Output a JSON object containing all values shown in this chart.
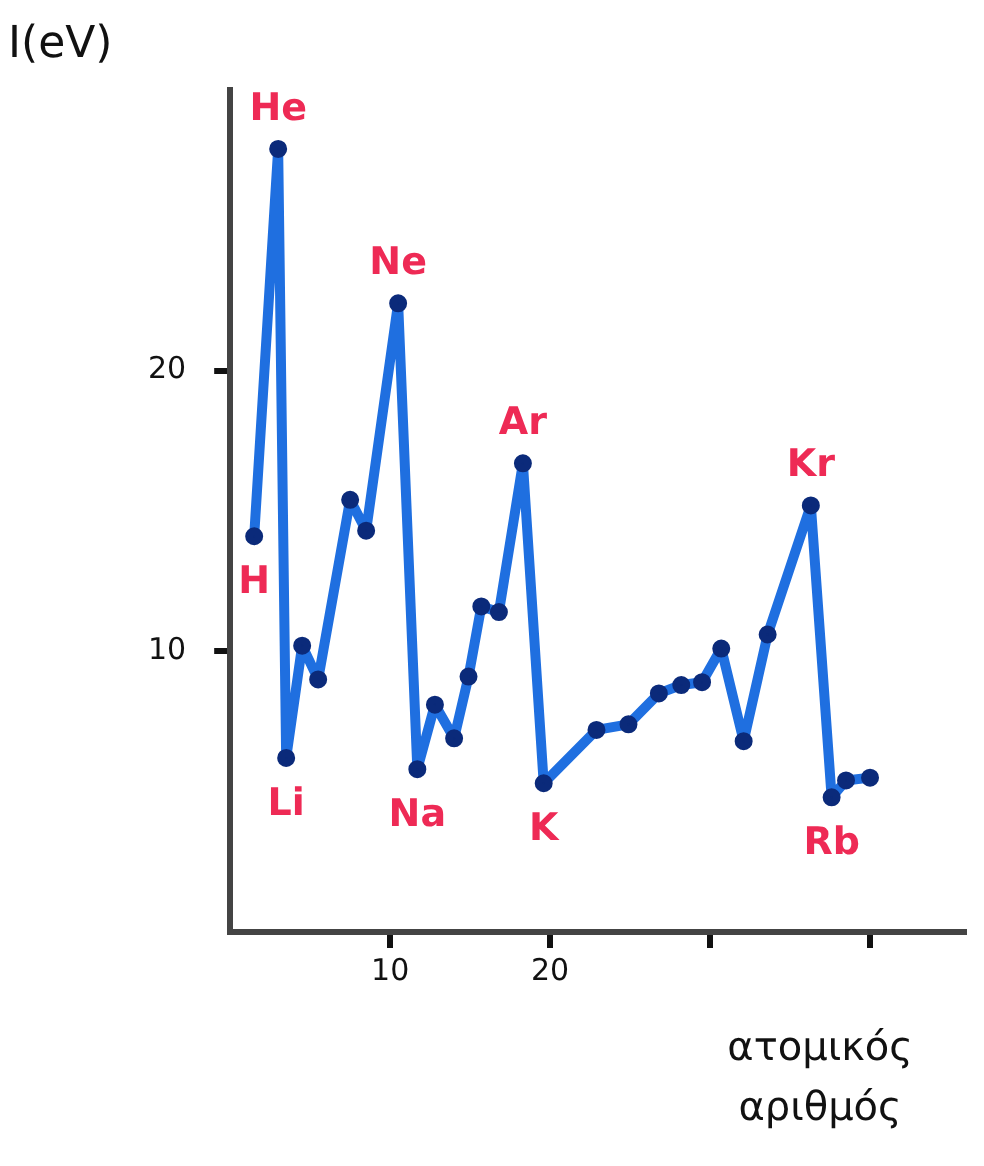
{
  "chart_data": {
    "type": "line",
    "xlabel": "ατομικός αριθμός",
    "ylabel": "I(eV)",
    "x": [
      1.5,
      3,
      3.5,
      4.5,
      5.5,
      7.5,
      8.5,
      10.5,
      11.7,
      12.8,
      14,
      14.9,
      15.7,
      16.8,
      18.3,
      19.6,
      22.9,
      24.9,
      26.8,
      28.2,
      29.5,
      30.7,
      32.1,
      33.6,
      36.3,
      37.6,
      38.5,
      40
    ],
    "series": [
      {
        "color": "#1f6fe0",
        "values": [
          14.1,
          27.9,
          6.2,
          10.2,
          9.0,
          15.4,
          14.3,
          22.4,
          5.8,
          8.1,
          6.9,
          9.1,
          11.6,
          11.4,
          16.7,
          5.3,
          7.2,
          7.4,
          8.5,
          8.8,
          8.9,
          10.1,
          6.8,
          10.6,
          15.2,
          4.8,
          5.4,
          5.5
        ]
      }
    ],
    "xlim": [
      0,
      46
    ],
    "ylim": [
      0,
      30
    ],
    "xticks": [
      10,
      20,
      {
        "value": 30,
        "label": null
      },
      {
        "value": 40,
        "label": null
      }
    ],
    "yticks": [
      10,
      20
    ],
    "annotations": [
      {
        "text": "H",
        "x": 1.5,
        "y": 14.1
      },
      {
        "text": "He",
        "x": 3,
        "y": 27.9
      },
      {
        "text": "Li",
        "x": 3.5,
        "y": 6.2
      },
      {
        "text": "Ne",
        "x": 10.5,
        "y": 22.4
      },
      {
        "text": "Na",
        "x": 11.7,
        "y": 5.8
      },
      {
        "text": "Ar",
        "x": 18.3,
        "y": 16.7
      },
      {
        "text": "K",
        "x": 19.6,
        "y": 5.3
      },
      {
        "text": "Kr",
        "x": 36.3,
        "y": 15.2
      },
      {
        "text": "Rb",
        "x": 37.6,
        "y": 4.8
      }
    ],
    "grid": false,
    "legend": false,
    "marker": "circle",
    "line_style": "solid"
  }
}
